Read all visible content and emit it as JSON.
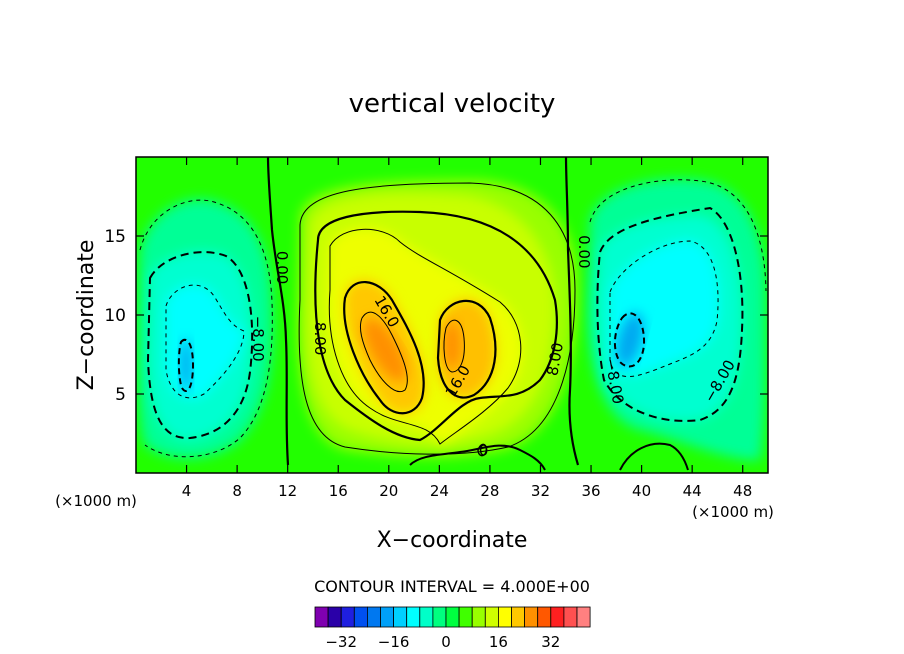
{
  "chart_data": {
    "type": "heatmap",
    "title": "vertical velocity",
    "xlabel": "X−coordinate",
    "ylabel": "Z−coordinate",
    "x_unit_label_left": "(×1000 m)",
    "x_unit_label_right": "(×1000 m)",
    "xlim": [
      0,
      50
    ],
    "ylim": [
      0,
      20
    ],
    "x_ticks": [
      "4",
      "8",
      "12",
      "16",
      "20",
      "24",
      "28",
      "32",
      "36",
      "40",
      "44",
      "48"
    ],
    "x_tick_values": [
      4,
      8,
      12,
      16,
      20,
      24,
      28,
      32,
      36,
      40,
      44,
      48
    ],
    "y_ticks": [
      "5",
      "10",
      "15"
    ],
    "y_tick_values": [
      5,
      10,
      15
    ],
    "contour_interval_text": "CONTOUR INTERVAL = 4.000E+00",
    "contour_interval": 4,
    "contour_labels": [
      {
        "text": "0.00",
        "x": 11.5,
        "y": 13.0,
        "rotation": 90
      },
      {
        "text": "8.00",
        "x": 14.5,
        "y": 8.5,
        "rotation": 90
      },
      {
        "text": "−8.00",
        "x": 9.6,
        "y": 8.5,
        "rotation": 90
      },
      {
        "text": "16.0",
        "x": 19.8,
        "y": 10.2,
        "rotation": 60
      },
      {
        "text": "16.0",
        "x": 25.5,
        "y": 5.8,
        "rotation": -60
      },
      {
        "text": "8.00",
        "x": 33.2,
        "y": 7.2,
        "rotation": -80
      },
      {
        "text": "0.00",
        "x": 35.4,
        "y": 14.0,
        "rotation": 90
      },
      {
        "text": "−8.00",
        "x": 37.8,
        "y": 5.8,
        "rotation": 80
      },
      {
        "text": "−8.00",
        "x": 46.2,
        "y": 5.8,
        "rotation": -60
      },
      {
        "text": "0",
        "x": 27.5,
        "y": 1.4,
        "rotation": 0
      }
    ],
    "colorbar": {
      "levels": [
        -36,
        -32,
        -28,
        -24,
        -20,
        -16,
        -12,
        -8,
        -4,
        0,
        4,
        8,
        12,
        16,
        20,
        24,
        28,
        32,
        36
      ],
      "colors": [
        "#7f00b0",
        "#2a00a8",
        "#1f1fe0",
        "#0050f0",
        "#0078f0",
        "#00a0f8",
        "#00d0ff",
        "#00ffff",
        "#00ffc8",
        "#00ff80",
        "#00ff40",
        "#40ff00",
        "#98ff00",
        "#d0ff00",
        "#ffff00",
        "#ffc800",
        "#ff9000",
        "#ff5800",
        "#ff2020",
        "#ff5050",
        "#ff8080"
      ],
      "tick_labels": [
        "−32",
        "−16",
        "0",
        "16",
        "32"
      ],
      "tick_values": [
        -32,
        -16,
        0,
        16,
        32
      ]
    },
    "features": [
      {
        "x": 4,
        "y": 7.5,
        "w": -13
      },
      {
        "x": 4.2,
        "y": 13,
        "w": -8
      },
      {
        "x": 20,
        "y": 8.0,
        "w": 24
      },
      {
        "x": 25,
        "y": 8.0,
        "w": 23
      },
      {
        "x": 24,
        "y": 10,
        "w": 10
      },
      {
        "x": 22,
        "y": 14,
        "w": 6
      },
      {
        "x": 39,
        "y": 8.5,
        "w": -13
      },
      {
        "x": 42.5,
        "y": 11,
        "w": -9
      },
      {
        "x": 44,
        "y": 5,
        "w": -6
      }
    ]
  }
}
